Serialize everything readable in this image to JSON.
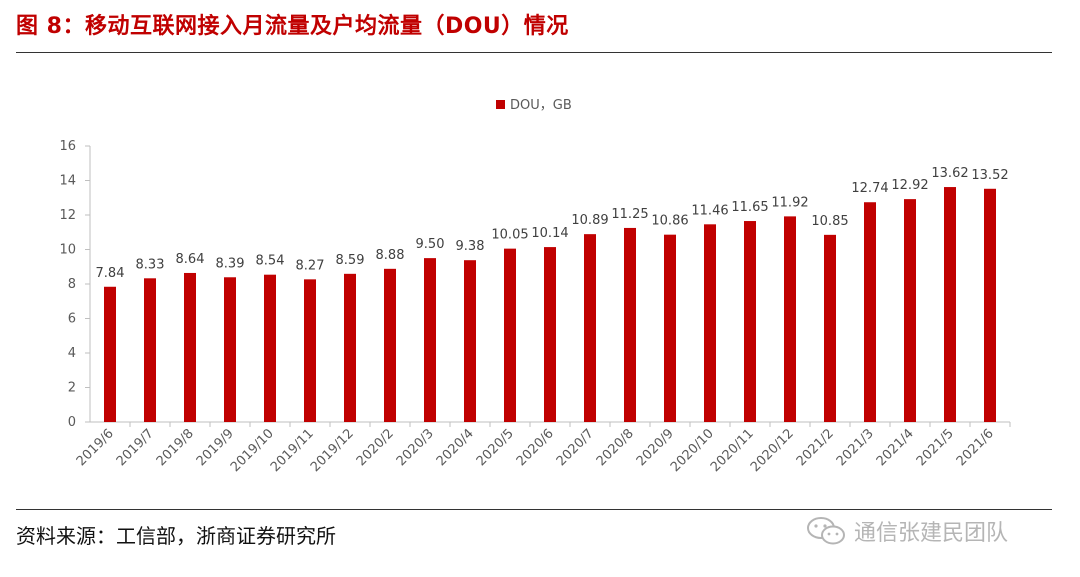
{
  "figure": {
    "title": "图 8：移动互联网接入月流量及户均流量（DOU）情况",
    "source": "资料来源：工信部，浙商证券研究所",
    "watermark": "通信张建民团队"
  },
  "colors": {
    "bar": "#c00000",
    "title": "#c00000"
  },
  "chart_data": {
    "type": "bar",
    "title": "",
    "xlabel": "",
    "ylabel": "",
    "legend": {
      "position": "top-center",
      "entries": [
        "DOU，GB"
      ]
    },
    "ylim": [
      0,
      16
    ],
    "yticks": [
      0,
      2,
      4,
      6,
      8,
      10,
      12,
      14,
      16
    ],
    "grid": false,
    "categories": [
      "2019/6",
      "2019/7",
      "2019/8",
      "2019/9",
      "2019/10",
      "2019/11",
      "2019/12",
      "2020/2",
      "2020/3",
      "2020/4",
      "2020/5",
      "2020/6",
      "2020/7",
      "2020/8",
      "2020/9",
      "2020/10",
      "2020/11",
      "2020/12",
      "2021/2",
      "2021/3",
      "2021/4",
      "2021/5",
      "2021/6"
    ],
    "series": [
      {
        "name": "DOU，GB",
        "values": [
          7.84,
          8.33,
          8.64,
          8.39,
          8.54,
          8.27,
          8.59,
          8.88,
          9.5,
          9.38,
          10.05,
          10.14,
          10.89,
          11.25,
          10.86,
          11.46,
          11.65,
          11.92,
          10.85,
          12.74,
          12.92,
          13.62,
          13.52
        ],
        "labels": [
          "7.84",
          "8.33",
          "8.64",
          "8.39",
          "8.54",
          "8.27",
          "8.59",
          "8.88",
          "9.50",
          "9.38",
          "10.05",
          "10.14",
          "10.89",
          "11.25",
          "10.86",
          "11.46",
          "11.65",
          "11.92",
          "10.85",
          "12.74",
          "12.92",
          "13.62",
          "13.52"
        ]
      }
    ]
  }
}
